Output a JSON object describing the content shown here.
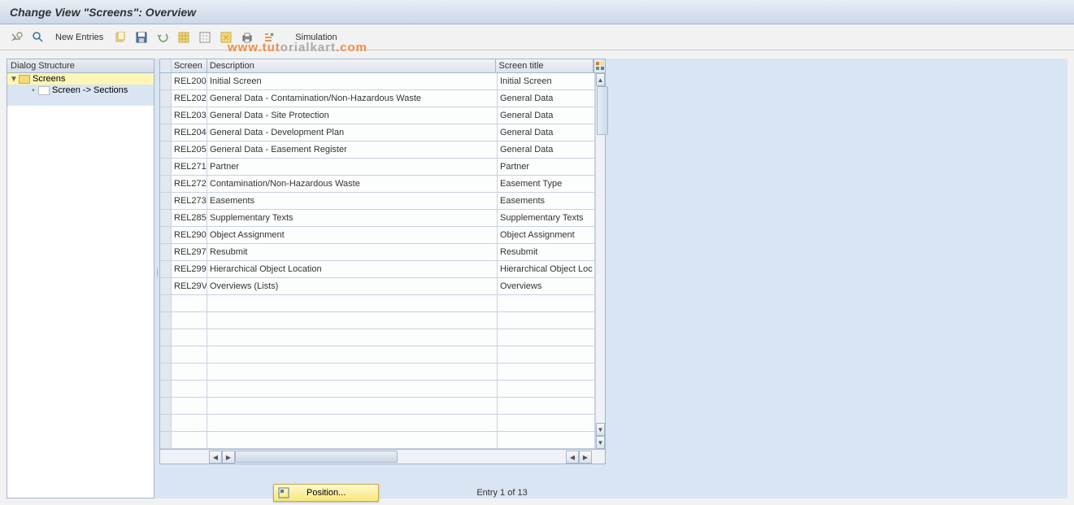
{
  "colors": {
    "header_gradient_top": "#e8eef5",
    "header_gradient_bottom": "#cbd8e8",
    "border": "#a5b6cc",
    "panel_bg": "#d9e5f2",
    "selection_bg": "#fef6b5",
    "button_yellow": "#f8e87a",
    "watermark_orange": "#f58c3f",
    "watermark_gray": "#aaaaaa"
  },
  "title": "Change View \"Screens\": Overview",
  "toolbar": {
    "new_entries": "New Entries",
    "simulation": "Simulation"
  },
  "tree": {
    "header": "Dialog Structure",
    "root_label": "Screens",
    "child_label": "Screen -> Sections"
  },
  "table": {
    "columns": {
      "screen": "Screen",
      "description": "Description",
      "title": "Screen title"
    },
    "rows": [
      {
        "screen": "REL200",
        "desc": "Initial Screen",
        "title": "Initial Screen"
      },
      {
        "screen": "REL202",
        "desc": "General Data - Contamination/Non-Hazardous Waste",
        "title": "General Data"
      },
      {
        "screen": "REL203",
        "desc": "General Data - Site Protection",
        "title": "General Data"
      },
      {
        "screen": "REL204",
        "desc": "General Data - Development Plan",
        "title": "General Data"
      },
      {
        "screen": "REL205",
        "desc": "General Data - Easement Register",
        "title": "General Data"
      },
      {
        "screen": "REL271",
        "desc": "Partner",
        "title": "Partner"
      },
      {
        "screen": "REL272",
        "desc": "Contamination/Non-Hazardous Waste",
        "title": "Easement Type"
      },
      {
        "screen": "REL273",
        "desc": "Easements",
        "title": "Easements"
      },
      {
        "screen": "REL285",
        "desc": "Supplementary Texts",
        "title": "Supplementary Texts"
      },
      {
        "screen": "REL290",
        "desc": "Object Assignment",
        "title": "Object Assignment"
      },
      {
        "screen": "REL297",
        "desc": "Resubmit",
        "title": "Resubmit"
      },
      {
        "screen": "REL299",
        "desc": "Hierarchical Object Location",
        "title": "Hierarchical Object Loc"
      },
      {
        "screen": "REL29V",
        "desc": "Overviews (Lists)",
        "title": "Overviews"
      }
    ],
    "empty_rows": 9
  },
  "bottom": {
    "position_label": "Position...",
    "entry_text": "Entry 1 of 13"
  },
  "watermark": {
    "part1": "www.tut",
    "part2": "orialkart",
    "part3": ".com"
  }
}
